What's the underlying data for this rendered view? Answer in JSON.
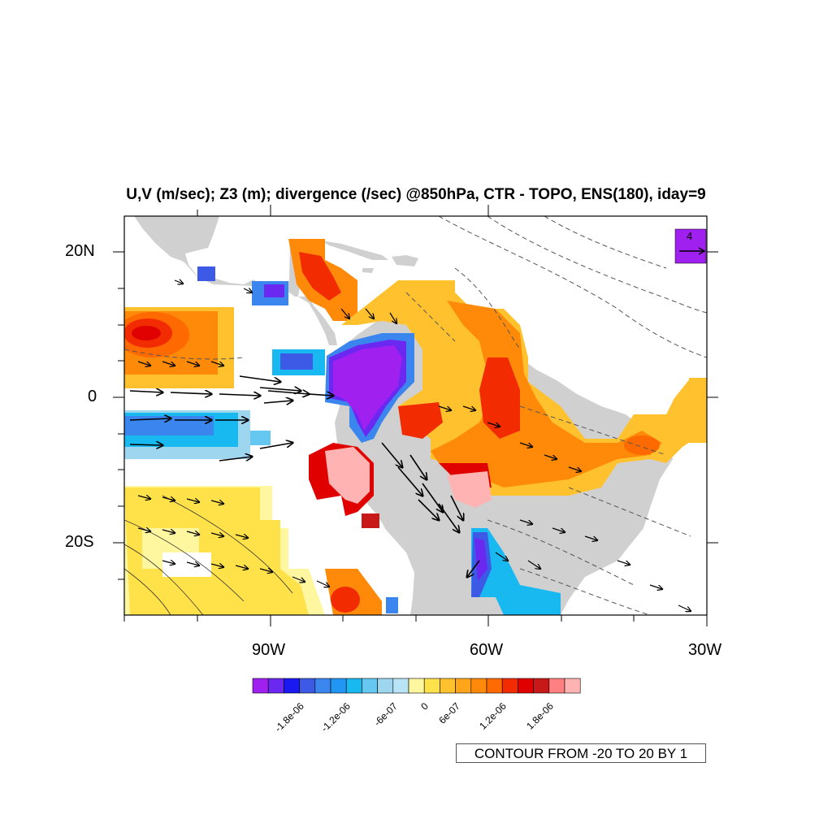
{
  "title": "U,V (m/sec); Z3 (m); divergence (/sec) @850hPa, CTR - TOPO, ENS(180), iday=9",
  "axes": {
    "lat_labels": [
      "20N",
      "0",
      "20S"
    ],
    "lon_labels": [
      "90W",
      "60W",
      "30W"
    ],
    "lat_range": [
      -30,
      25
    ],
    "lon_range": [
      -110,
      -30
    ]
  },
  "colors": {
    "land": "#d0d0d0",
    "frame": "#000000"
  },
  "reference_vector": {
    "magnitude_label": "4",
    "box_color": "#a020f0"
  },
  "colorbar": {
    "colors": [
      "#a020f0",
      "#6a28f0",
      "#1a1af0",
      "#3c5ae6",
      "#3a86ee",
      "#2196f3",
      "#18b8f0",
      "#66c8f0",
      "#9ed6f0",
      "#b8e4f6",
      "#fff6a0",
      "#ffe14a",
      "#ffc22e",
      "#ffa51a",
      "#ff8a0a",
      "#ff6a00",
      "#f22c00",
      "#e00000",
      "#c81818",
      "#ff8080",
      "#ffb3b3"
    ],
    "tick_labels": [
      "-1.8e-06",
      "-1.2e-06",
      "-6e-07",
      "0",
      "6e-07",
      "1.2e-06",
      "1.8e-06"
    ]
  },
  "contour_note": "CONTOUR FROM -20 TO 20 BY 1"
}
